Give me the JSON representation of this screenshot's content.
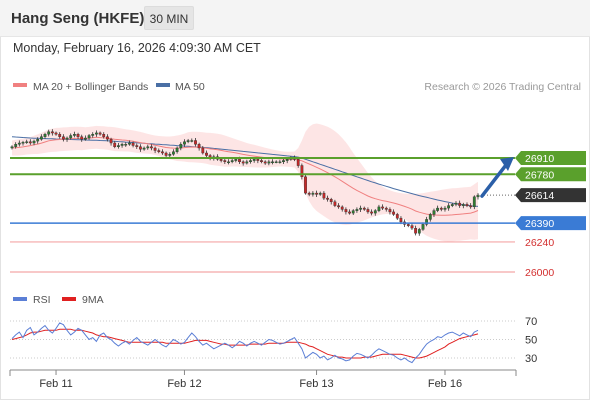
{
  "header": {
    "title": "Hang Seng (HKFE)",
    "timeframe": "30 MIN",
    "datetime": "Monday, February 16, 2026 4:09:30 AM CET"
  },
  "legend": {
    "main": [
      "MA 20 + Bollinger Bands",
      "MA 50"
    ],
    "rsi": [
      "RSI",
      "9MA"
    ]
  },
  "credit": "Research © 2026 Trading Central",
  "colors": {
    "ma20": "#f08080",
    "ma50": "#4a6fa5",
    "band": "#fde0e0",
    "resistance": "#5aa02c",
    "support": "#3a7bd5",
    "support_line": "#f4a6a6",
    "last_price_bg": "#333333",
    "arrow": "#2b5fa8",
    "rsi": "#5b7fd6",
    "rsi_ma": "#e02020"
  },
  "chart_data": [
    {
      "type": "candlestick",
      "x_labels": [
        "Feb 11",
        "Feb 12",
        "Feb 13",
        "Feb 16"
      ],
      "last_price": 26614,
      "levels": [
        {
          "value": 26910,
          "label": "26910",
          "kind": "resistance"
        },
        {
          "value": 26780,
          "label": "26780",
          "kind": "resistance"
        },
        {
          "value": 26614,
          "label": "26614",
          "kind": "last"
        },
        {
          "value": 26390,
          "label": "26390",
          "kind": "pivot"
        },
        {
          "value": 26240,
          "label": "26240",
          "kind": "support"
        },
        {
          "value": 26000,
          "label": "26000",
          "kind": "support"
        }
      ],
      "close": [
        27000,
        27020,
        27030,
        27035,
        27040,
        27030,
        27045,
        27060,
        27080,
        27100,
        27120,
        27110,
        27100,
        27080,
        27060,
        27070,
        27090,
        27100,
        27080,
        27060,
        27070,
        27090,
        27100,
        27110,
        27100,
        27080,
        27060,
        27030,
        27000,
        27010,
        27020,
        27020,
        27030,
        27010,
        27000,
        26980,
        26990,
        27000,
        26990,
        26970,
        26960,
        26950,
        26930,
        26940,
        26960,
        26990,
        27020,
        27040,
        27050,
        27050,
        27020,
        26990,
        26950,
        26930,
        26910,
        26920,
        26900,
        26890,
        26880,
        26880,
        26890,
        26900,
        26880,
        26870,
        26880,
        26890,
        26900,
        26890,
        26880,
        26870,
        26880,
        26880,
        26880,
        26880,
        26890,
        26900,
        26910,
        26900,
        26850,
        26760,
        26630,
        26620,
        26630,
        26620,
        26630,
        26590,
        26580,
        26560,
        26530,
        26520,
        26500,
        26480,
        26470,
        26490,
        26500,
        26510,
        26500,
        26480,
        26470,
        26490,
        26520,
        26510,
        26500,
        26480,
        26460,
        26430,
        26400,
        26380,
        26370,
        26350,
        26310,
        26340,
        26380,
        26420,
        26460,
        26490,
        26510,
        26500,
        26510,
        26530,
        26540,
        26550,
        26530,
        26540,
        26530,
        26520,
        26600,
        26614
      ],
      "ma20": [
        26990,
        26992,
        26995,
        26999,
        27004,
        27009,
        27015,
        27021,
        27029,
        27038,
        27047,
        27052,
        27055,
        27058,
        27060,
        27062,
        27064,
        27066,
        27067,
        27065,
        27066,
        27069,
        27072,
        27075,
        27073,
        27071,
        27068,
        27064,
        27060,
        27057,
        27054,
        27051,
        27048,
        27043,
        27038,
        27033,
        27028,
        27023,
        27018,
        27012,
        27006,
        27000,
        26994,
        26991,
        26989,
        26988,
        26990,
        26993,
        26996,
        26998,
        26997,
        26995,
        26992,
        26988,
        26983,
        26980,
        26976,
        26971,
        26965,
        26960,
        26956,
        26951,
        26945,
        26939,
        26934,
        26929,
        26925,
        26921,
        26917,
        26913,
        26910,
        26908,
        26906,
        26904,
        26902,
        26900,
        26899,
        26898,
        26895,
        26888,
        26875,
        26862,
        26849,
        26836,
        26823,
        26808,
        26793,
        26777,
        26760,
        26742,
        26724,
        26705,
        26686,
        26668,
        26651,
        26636,
        26621,
        26607,
        26595,
        26585,
        26577,
        26570,
        26564,
        26558,
        26551,
        26543,
        26534,
        26524,
        26513,
        26501,
        26487,
        26477,
        26469,
        26462,
        26458,
        26455,
        26454,
        26453,
        26453,
        26454,
        26456,
        26459,
        26461,
        26464,
        26467,
        26470,
        26479,
        26491
      ],
      "bb_upper": [
        27050,
        27055,
        27060,
        27065,
        27070,
        27078,
        27088,
        27100,
        27112,
        27125,
        27138,
        27145,
        27150,
        27152,
        27154,
        27156,
        27158,
        27160,
        27160,
        27158,
        27156,
        27158,
        27162,
        27166,
        27165,
        27163,
        27160,
        27158,
        27155,
        27150,
        27145,
        27140,
        27135,
        27130,
        27125,
        27118,
        27110,
        27102,
        27095,
        27090,
        27086,
        27084,
        27082,
        27082,
        27085,
        27090,
        27096,
        27105,
        27115,
        27120,
        27120,
        27118,
        27115,
        27112,
        27110,
        27108,
        27104,
        27098,
        27090,
        27080,
        27070,
        27060,
        27050,
        27040,
        27030,
        27022,
        27015,
        27008,
        27000,
        26992,
        26985,
        26978,
        26972,
        26966,
        26962,
        26960,
        26960,
        26962,
        26990,
        27050,
        27120,
        27160,
        27180,
        27185,
        27180,
        27170,
        27160,
        27145,
        27125,
        27100,
        27070,
        27035,
        26995,
        26950,
        26910,
        26870,
        26830,
        26790,
        26755,
        26725,
        26700,
        26680,
        26665,
        26652,
        26642,
        26635,
        26630,
        26626,
        26624,
        26624,
        26625,
        26627,
        26630,
        26635,
        26640,
        26645,
        26650,
        26655,
        26660,
        26664,
        26668,
        26670,
        26672,
        26675,
        26678,
        26680,
        26700,
        26720
      ],
      "bb_lower": [
        26930,
        26929,
        26930,
        26933,
        26938,
        26940,
        26942,
        26942,
        26946,
        26951,
        26956,
        26959,
        26960,
        26964,
        26966,
        26968,
        26970,
        26972,
        26974,
        26972,
        26976,
        26980,
        26982,
        26984,
        26981,
        26979,
        26976,
        26970,
        26965,
        26964,
        26963,
        26962,
        26961,
        26956,
        26951,
        26948,
        26946,
        26944,
        26941,
        26934,
        26926,
        26916,
        26906,
        26900,
        26893,
        26886,
        26884,
        26881,
        26877,
        26876,
        26874,
        26872,
        26869,
        26864,
        26856,
        26852,
        26848,
        26844,
        26840,
        26840,
        26842,
        26842,
        26840,
        26838,
        26838,
        26836,
        26835,
        26834,
        26834,
        26834,
        26835,
        26838,
        26840,
        26842,
        26842,
        26840,
        26838,
        26834,
        26800,
        26726,
        26630,
        26564,
        26518,
        26487,
        26466,
        26446,
        26426,
        26409,
        26395,
        26384,
        26378,
        26375,
        26377,
        26386,
        26392,
        26402,
        26412,
        26424,
        26435,
        26445,
        26454,
        26460,
        26463,
        26464,
        26460,
        26451,
        26438,
        26422,
        26402,
        26378,
        26349,
        26327,
        26308,
        26289,
        26276,
        26265,
        26258,
        26251,
        26246,
        26244,
        26244,
        26248,
        26250,
        26253,
        26256,
        26260,
        26258,
        26262
      ],
      "ma50": [
        27080,
        27078,
        27076,
        27074,
        27072,
        27070,
        27068,
        27067,
        27066,
        27065,
        27064,
        27063,
        27062,
        27061,
        27060,
        27059,
        27058,
        27057,
        27056,
        27055,
        27054,
        27053,
        27052,
        27051,
        27050,
        27049,
        27047,
        27045,
        27043,
        27041,
        27039,
        27037,
        27035,
        27033,
        27031,
        27029,
        27027,
        27025,
        27023,
        27021,
        27019,
        27017,
        27015,
        27013,
        27011,
        27009,
        27007,
        27005,
        27003,
        27001,
        26999,
        26997,
        26995,
        26993,
        26990,
        26987,
        26984,
        26981,
        26978,
        26975,
        26972,
        26969,
        26966,
        26963,
        26960,
        26957,
        26954,
        26951,
        26948,
        26945,
        26942,
        26939,
        26936,
        26933,
        26930,
        26927,
        26924,
        26921,
        26917,
        26910,
        26900,
        26890,
        26880,
        26870,
        26860,
        26850,
        26840,
        26830,
        26820,
        26810,
        26800,
        26790,
        26780,
        26770,
        26760,
        26750,
        26740,
        26730,
        26720,
        26711,
        26702,
        26693,
        26684,
        26675,
        26666,
        26658,
        26650,
        26642,
        26634,
        26626,
        26618,
        26610,
        26603,
        26596,
        26589,
        26582,
        26575,
        26568,
        26562,
        26556,
        26550,
        26545,
        26540,
        26536,
        26532,
        26528,
        26526,
        26524
      ],
      "rsi": {
        "ticks": [
          30,
          50,
          70
        ],
        "rsi": [
          51,
          55,
          58,
          52,
          60,
          63,
          55,
          58,
          62,
          65,
          60,
          57,
          62,
          68,
          66,
          60,
          55,
          58,
          62,
          60,
          55,
          50,
          52,
          48,
          55,
          57,
          52,
          50,
          46,
          43,
          46,
          48,
          45,
          49,
          52,
          48,
          46,
          44,
          47,
          50,
          47,
          44,
          42,
          46,
          50,
          48,
          45,
          47,
          52,
          57,
          53,
          48,
          44,
          46,
          43,
          40,
          42,
          44,
          46,
          44,
          41,
          44,
          48,
          46,
          43,
          46,
          48,
          46,
          44,
          47,
          50,
          49,
          47,
          45,
          46,
          48,
          50,
          52,
          46,
          40,
          30,
          33,
          36,
          34,
          30,
          32,
          28,
          30,
          33,
          30,
          29,
          27,
          28,
          32,
          35,
          34,
          32,
          30,
          33,
          37,
          40,
          38,
          36,
          34,
          33,
          30,
          28,
          30,
          27,
          25,
          30,
          34,
          40,
          45,
          48,
          50,
          53,
          52,
          55,
          57,
          58,
          56,
          54,
          57,
          55,
          53,
          58,
          60
        ],
        "ma": [
          50,
          51,
          52,
          53,
          55,
          57,
          58,
          58,
          59,
          60,
          60,
          60,
          60,
          61,
          61,
          61,
          61,
          60,
          60,
          60,
          59,
          58,
          57,
          55,
          54,
          53,
          53,
          52,
          51,
          50,
          49,
          48,
          47,
          47,
          47,
          47,
          47,
          47,
          47,
          47,
          47,
          47,
          46,
          46,
          46,
          46,
          46,
          46,
          47,
          48,
          49,
          49,
          49,
          49,
          48,
          47,
          46,
          45,
          45,
          44,
          44,
          44,
          44,
          44,
          44,
          45,
          45,
          45,
          45,
          45,
          46,
          46,
          46,
          46,
          46,
          47,
          47,
          47,
          47,
          46,
          45,
          43,
          42,
          40,
          38,
          36,
          34,
          33,
          32,
          31,
          31,
          30,
          30,
          30,
          30,
          30,
          31,
          31,
          31,
          32,
          33,
          34,
          34,
          34,
          34,
          34,
          34,
          33,
          32,
          31,
          30,
          30,
          31,
          32,
          34,
          36,
          38,
          40,
          42,
          45,
          47,
          49,
          51,
          52,
          53,
          54,
          55,
          56
        ]
      }
    }
  ]
}
